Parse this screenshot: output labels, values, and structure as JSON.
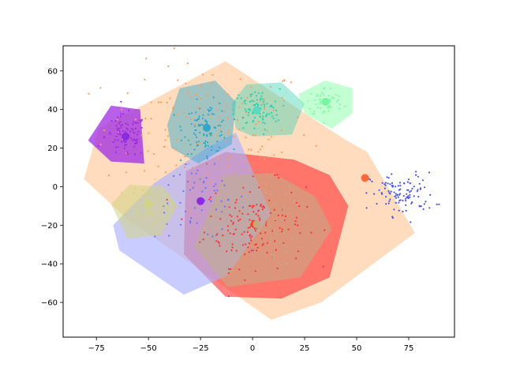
{
  "chart_data": {
    "type": "scatter",
    "title": "",
    "xlabel": "",
    "ylabel": "",
    "xlim": [
      -91,
      97
    ],
    "ylim": [
      -78,
      73
    ],
    "xticks": [
      -75,
      -50,
      -25,
      0,
      25,
      50,
      75
    ],
    "yticks": [
      -60,
      -40,
      -20,
      0,
      20,
      40,
      60
    ],
    "xtick_labels": [
      "−75",
      "−50",
      "−25",
      "0",
      "25",
      "50",
      "75"
    ],
    "ytick_labels": [
      "−60",
      "−40",
      "−20",
      "0",
      "20",
      "40",
      "60"
    ],
    "grid": false,
    "clusters": [
      {
        "color": "#ffd0a8",
        "fill_opacity": 0.75,
        "center": [
          -22,
          30.5
        ],
        "center_color": "#ff9a57",
        "hull": [
          [
            -81,
            4
          ],
          [
            -74,
            30
          ],
          [
            -13,
            65
          ],
          [
            45,
            24
          ],
          [
            55,
            18
          ],
          [
            78,
            -24
          ],
          [
            33,
            -60
          ],
          [
            9,
            -69
          ],
          [
            -61,
            -16
          ]
        ],
        "spread": [
          45,
          30
        ],
        "points": 140
      },
      {
        "color": "#ff3030",
        "fill_opacity": 0.6,
        "center": [
          1,
          -19.5
        ],
        "center_color": "#ff3b20",
        "hull": [
          [
            -32,
            8
          ],
          [
            -13,
            18
          ],
          [
            20,
            14
          ],
          [
            37,
            6
          ],
          [
            46,
            -10
          ],
          [
            37,
            -47
          ],
          [
            14,
            -58
          ],
          [
            -13,
            -57
          ],
          [
            -33,
            -35
          ]
        ],
        "spread": [
          22,
          20
        ],
        "points": 150
      },
      {
        "color": "#aab0ff",
        "fill_opacity": 0.65,
        "center": [
          -25,
          -7.5
        ],
        "center_color": "#8a2be2",
        "hull": [
          [
            -67,
            -20
          ],
          [
            -47,
            2
          ],
          [
            -22,
            20
          ],
          [
            -8,
            28
          ],
          [
            9,
            -14
          ],
          [
            -12,
            -46
          ],
          [
            -33,
            -56
          ],
          [
            -64,
            -33
          ]
        ],
        "spread": [
          20,
          18
        ],
        "points": 60
      },
      {
        "color": "#9f2be2",
        "fill_opacity": 0.75,
        "center": [
          -61,
          26
        ],
        "center_color": "#8a2be2",
        "hull": [
          [
            -79,
            24
          ],
          [
            -68,
            42
          ],
          [
            -54,
            40
          ],
          [
            -52,
            12
          ],
          [
            -68,
            13
          ]
        ],
        "spread": [
          9,
          10
        ],
        "points": 90
      },
      {
        "color": "#2fa7c8",
        "fill_opacity": 0.45,
        "center": [
          -22,
          30.5
        ],
        "center_color": "#2fa7c8",
        "hull": [
          [
            -41,
            32
          ],
          [
            -35,
            51
          ],
          [
            -18,
            55
          ],
          [
            -8,
            44
          ],
          [
            -10,
            22
          ],
          [
            -26,
            12
          ],
          [
            -39,
            20
          ]
        ],
        "spread": [
          10,
          12
        ],
        "points": 100
      },
      {
        "color": "#2fd0b0",
        "fill_opacity": 0.4,
        "center": [
          2,
          39.5
        ],
        "center_color": "#58dbbe",
        "hull": [
          [
            -10,
            43
          ],
          [
            -3,
            53
          ],
          [
            14,
            54
          ],
          [
            25,
            43
          ],
          [
            19,
            27
          ],
          [
            0,
            26
          ],
          [
            -8,
            30
          ]
        ],
        "spread": [
          10,
          10
        ],
        "points": 90
      },
      {
        "color": "#7cffa0",
        "fill_opacity": 0.45,
        "center": [
          35,
          44
        ],
        "center_color": "#78f4a0",
        "hull": [
          [
            22,
            48
          ],
          [
            35,
            55
          ],
          [
            48,
            51
          ],
          [
            48,
            38
          ],
          [
            38,
            30
          ],
          [
            25,
            38
          ]
        ],
        "spread": [
          8,
          7
        ],
        "points": 60
      },
      {
        "color": "#d2d484",
        "fill_opacity": 0.55,
        "center": [
          -50,
          -9
        ],
        "center_color": "#d2d484",
        "hull": [
          [
            -68,
            -9
          ],
          [
            -59,
            1
          ],
          [
            -43,
            0
          ],
          [
            -36,
            -10
          ],
          [
            -44,
            -25
          ],
          [
            -60,
            -27
          ]
        ],
        "spread": [
          9,
          10
        ],
        "points": 70
      },
      {
        "color": "#bfae88",
        "fill_opacity": 0.55,
        "center": [
          2,
          -19.5
        ],
        "center_color": "#c8a77c",
        "hull": [
          [
            -14,
            6
          ],
          [
            10,
            7
          ],
          [
            30,
            -5
          ],
          [
            38,
            -22
          ],
          [
            23,
            -47
          ],
          [
            -12,
            -52
          ],
          [
            -28,
            -31
          ],
          [
            -20,
            -10
          ]
        ],
        "spread": [
          18,
          20
        ],
        "points": 80
      },
      {
        "color": "#4b55e0",
        "fill_opacity": 0.0,
        "center": [
          54,
          4.5
        ],
        "center_color": "#ff6a3a",
        "hull": [],
        "spread": [
          14,
          10
        ],
        "points": 110,
        "point_center": [
          72,
          -4
        ]
      }
    ]
  }
}
